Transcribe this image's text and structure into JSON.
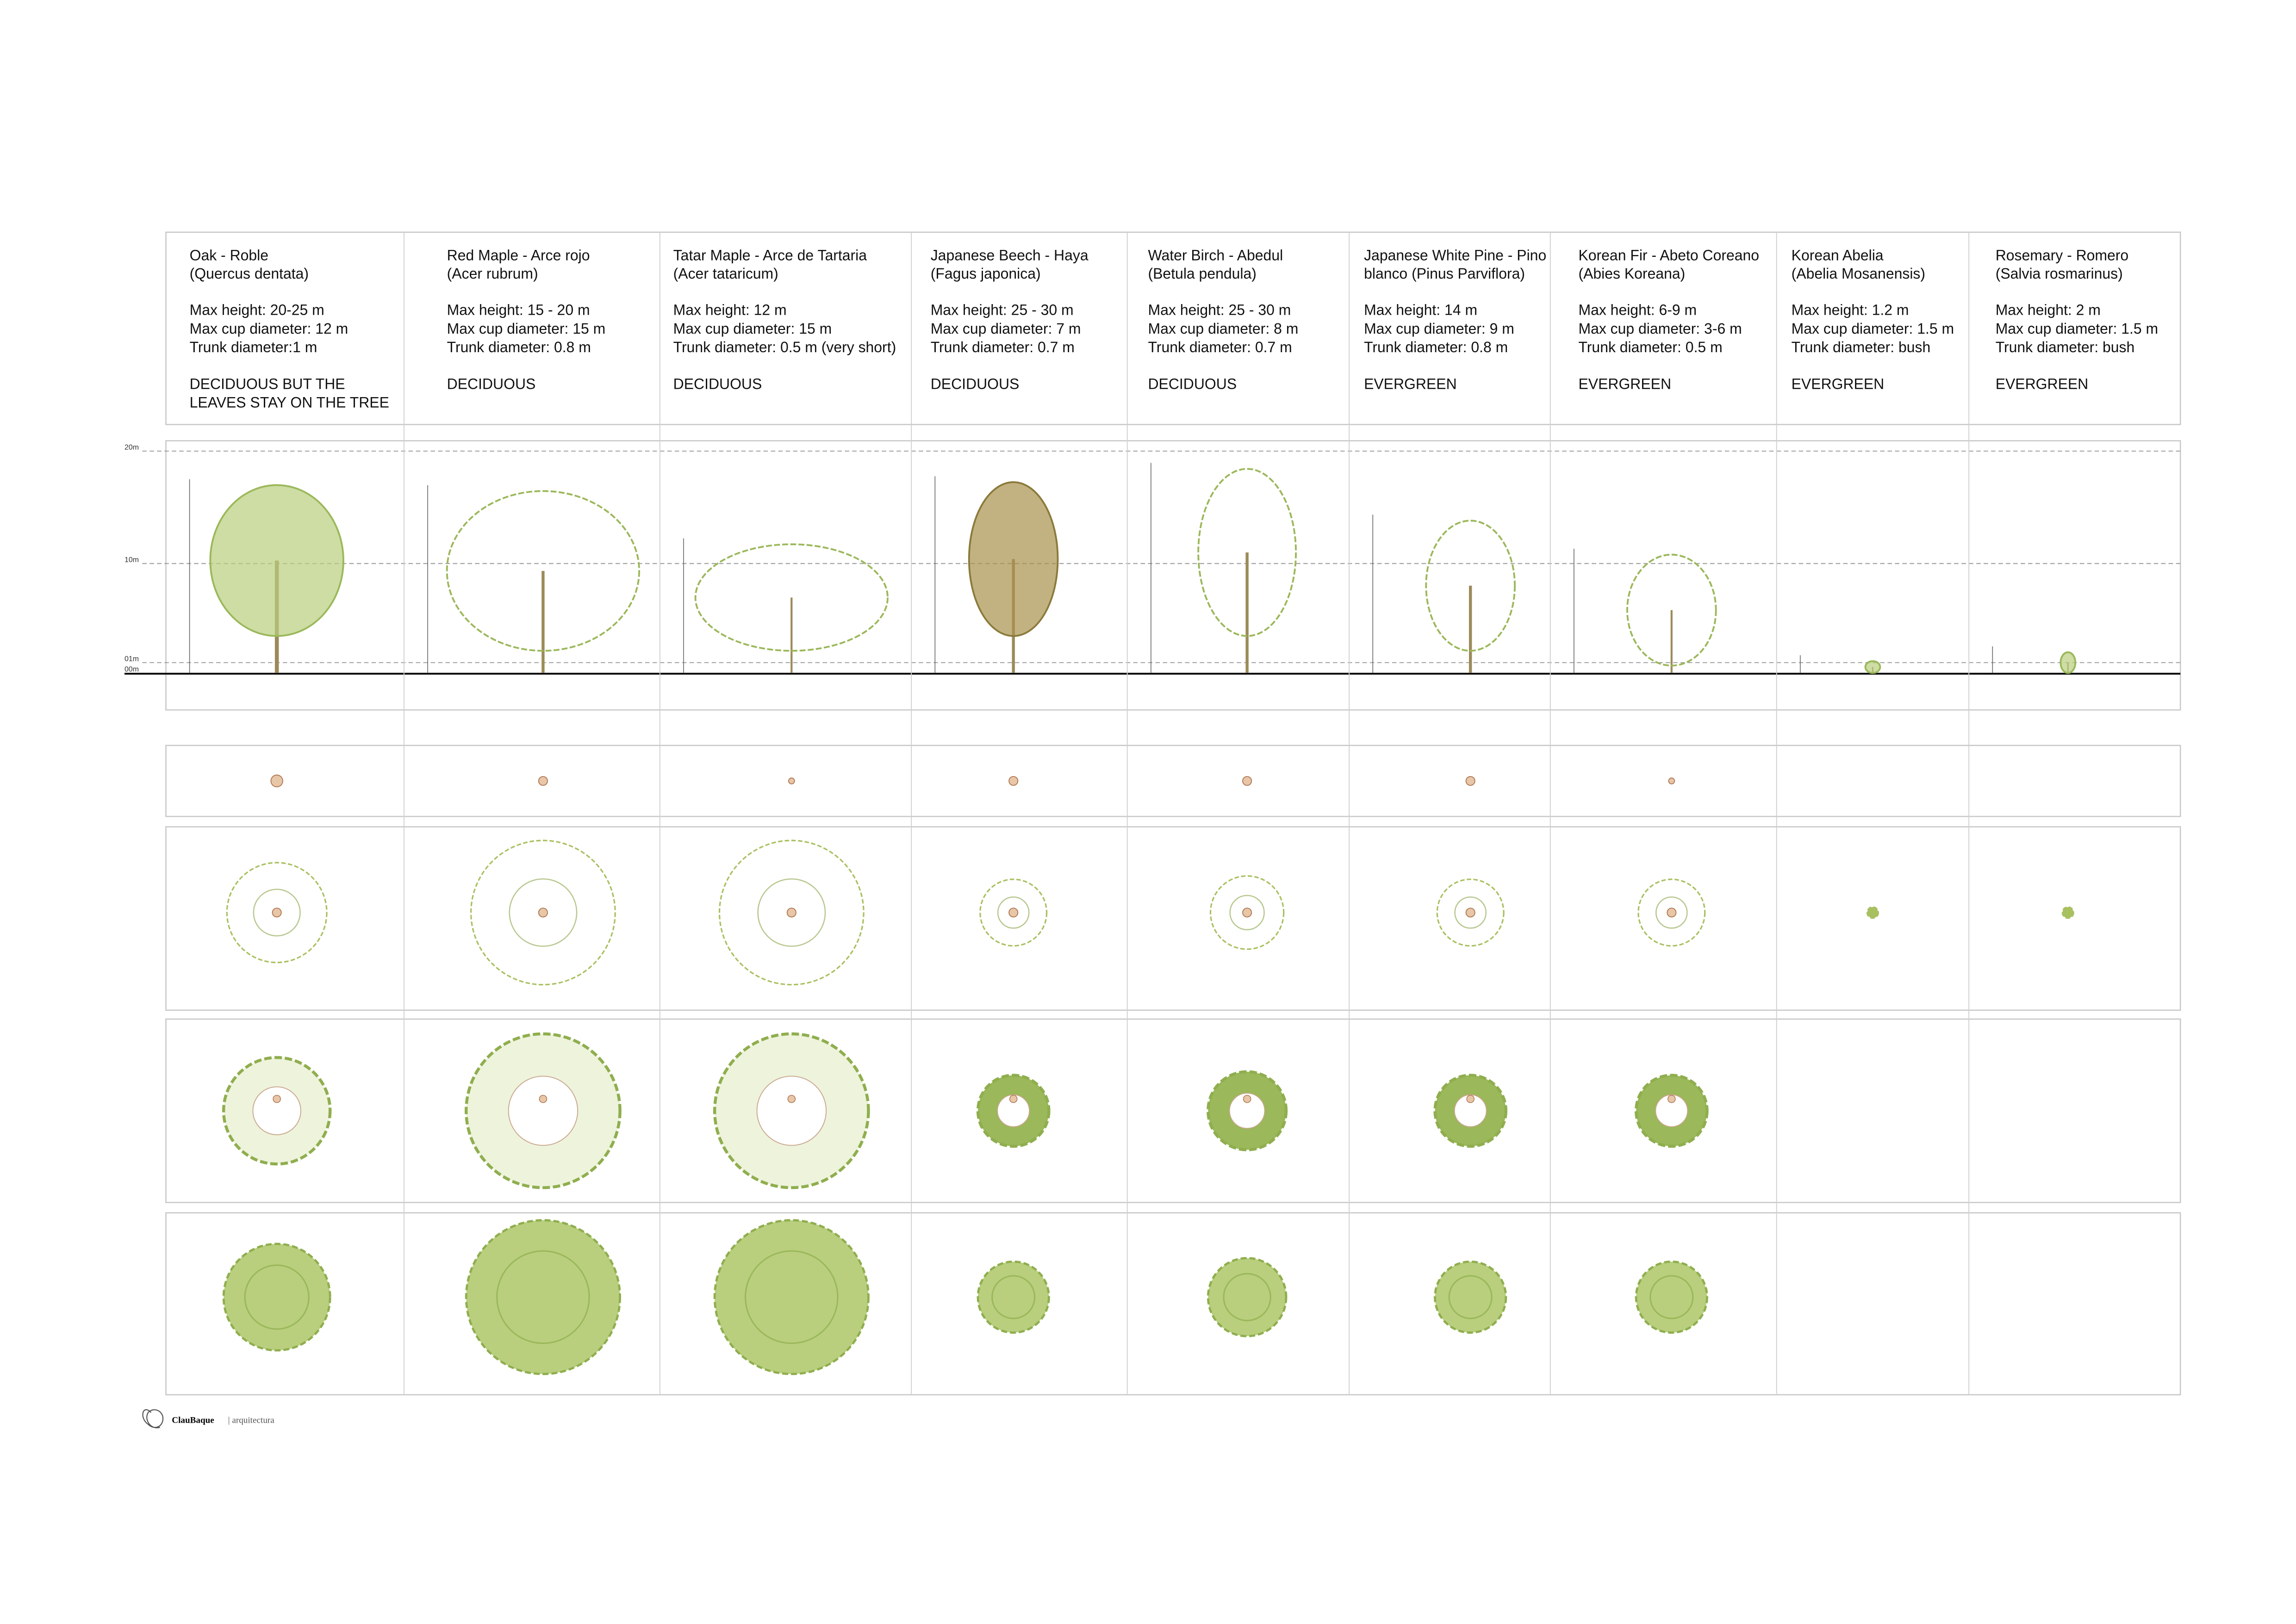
{
  "scale": {
    "labels": [
      "20m",
      "10m",
      "01m",
      "00m"
    ]
  },
  "columns": [
    {
      "title": [
        "Oak - Roble",
        "(Quercus dentata)"
      ],
      "specs": [
        "Max height: 20-25 m",
        "Max cup diameter: 12 m",
        "Trunk diameter:1 m"
      ],
      "type": [
        "DECIDUOUS BUT THE",
        "LEAVES STAY ON THE TREE"
      ]
    },
    {
      "title": [
        "Red Maple - Arce rojo",
        "(Acer rubrum)"
      ],
      "specs": [
        "Max height: 15 - 20 m",
        "Max cup diameter: 15 m",
        "Trunk diameter: 0.8 m"
      ],
      "type": [
        "DECIDUOUS"
      ]
    },
    {
      "title": [
        "Tatar Maple - Arce de Tartaria",
        "(Acer tataricum)"
      ],
      "specs": [
        "Max height: 12 m",
        "Max cup diameter: 15 m",
        "Trunk diameter: 0.5 m (very short)"
      ],
      "type": [
        "DECIDUOUS"
      ]
    },
    {
      "title": [
        "Japanese Beech - Haya",
        "(Fagus japonica)"
      ],
      "specs": [
        "Max height: 25 - 30 m",
        "Max cup diameter: 7 m",
        "Trunk diameter: 0.7 m"
      ],
      "type": [
        "DECIDUOUS"
      ]
    },
    {
      "title": [
        "Water Birch - Abedul",
        "(Betula pendula)"
      ],
      "specs": [
        "Max height: 25 - 30 m",
        "Max cup diameter: 8 m",
        "Trunk diameter: 0.7 m"
      ],
      "type": [
        "DECIDUOUS"
      ]
    },
    {
      "title": [
        "Japanese White Pine - Pino",
        "blanco (Pinus Parviflora)"
      ],
      "specs": [
        "Max height: 14 m",
        "Max cup diameter: 9 m",
        "Trunk diameter: 0.8 m"
      ],
      "type": [
        "EVERGREEN"
      ]
    },
    {
      "title": [
        "Korean Fir - Abeto Coreano",
        "(Abies Koreana)"
      ],
      "specs": [
        "Max height: 6-9 m",
        "Max cup diameter: 3-6 m",
        "Trunk diameter: 0.5 m"
      ],
      "type": [
        "EVERGREEN"
      ]
    },
    {
      "title": [
        "Korean Abelia",
        "(Abelia Mosanensis)"
      ],
      "specs": [
        "Max height: 1.2 m",
        "Max cup diameter: 1.5 m",
        "Trunk diameter: bush"
      ],
      "type": [
        "EVERGREEN"
      ]
    },
    {
      "title": [
        "Rosemary - Romero",
        "(Salvia rosmarinus)"
      ],
      "specs": [
        "Max height: 2 m",
        "Max cup diameter: 1.5 m",
        "Trunk diameter: bush"
      ],
      "type": [
        "EVERGREEN"
      ]
    }
  ],
  "logo": {
    "brand": "ClauBaque",
    "suffix": "| arquitectura"
  }
}
